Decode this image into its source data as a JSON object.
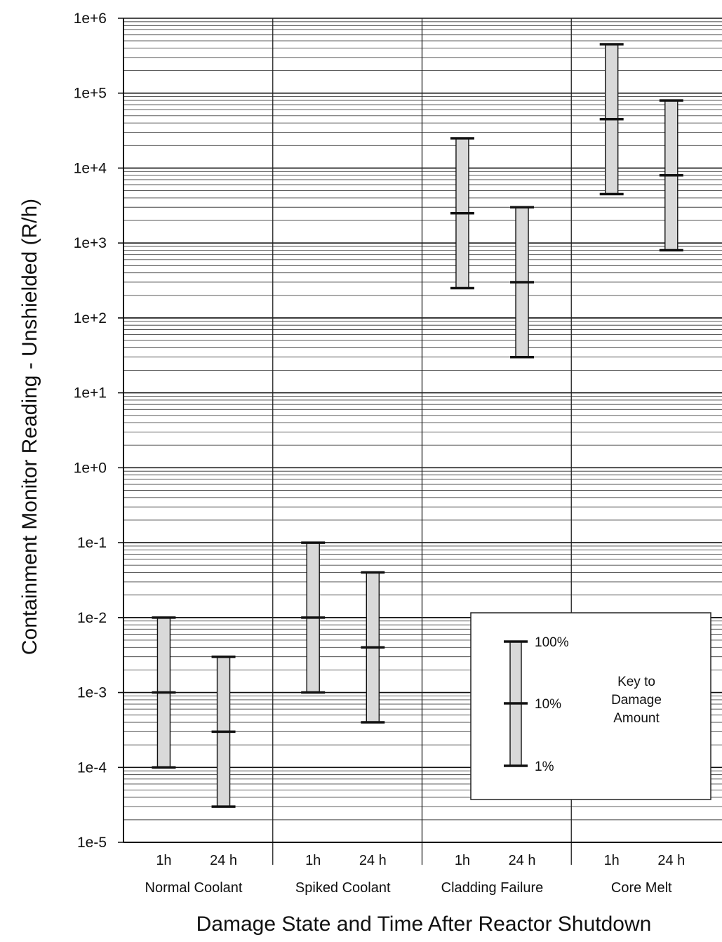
{
  "chart_data": {
    "type": "range-bar",
    "title": "",
    "xlabel": "Damage State and Time After Reactor Shutdown",
    "ylabel": "Containment Monitor Reading - Unshielded (R/h)",
    "yscale": "log",
    "ylim": [
      1e-05,
      1000000
    ],
    "ytick_labels": [
      "1e-5",
      "1e-4",
      "1e-3",
      "1e-2",
      "1e-1",
      "1e+0",
      "1e+1",
      "1e+2",
      "1e+3",
      "1e+4",
      "1e+5",
      "1e+6"
    ],
    "ytick_values": [
      1e-05,
      0.0001,
      0.001,
      0.01,
      0.1,
      1,
      10,
      100,
      1000,
      10000,
      100000,
      1000000
    ],
    "grid": "major and minor horizontal lines",
    "groups": [
      {
        "name": "Normal Coolant",
        "items": [
          {
            "time": "1h",
            "low": 0.0001,
            "mid": 0.001,
            "high": 0.01
          },
          {
            "time": "24 h",
            "low": 3e-05,
            "mid": 0.0003,
            "high": 0.003
          }
        ]
      },
      {
        "name": "Spiked Coolant",
        "items": [
          {
            "time": "1h",
            "low": 0.001,
            "mid": 0.01,
            "high": 0.1
          },
          {
            "time": "24 h",
            "low": 0.0004,
            "mid": 0.004,
            "high": 0.04
          }
        ]
      },
      {
        "name": "Cladding Failure",
        "items": [
          {
            "time": "1h",
            "low": 250,
            "mid": 2500,
            "high": 25000
          },
          {
            "time": "24 h",
            "low": 30,
            "mid": 300,
            "high": 3000
          }
        ]
      },
      {
        "name": "Core Melt",
        "items": [
          {
            "time": "1h",
            "low": 4500,
            "mid": 45000,
            "high": 450000
          },
          {
            "time": "24 h",
            "low": 800,
            "mid": 8000,
            "high": 80000
          }
        ]
      }
    ],
    "legend": {
      "title_lines": [
        "Key to",
        "Damage",
        "Amount"
      ],
      "markers": [
        "100%",
        "10%",
        "1%"
      ],
      "placement": "lower-right"
    },
    "colors": {
      "bar_fill": "#d9d9d9",
      "line": "#111111",
      "background": "#ffffff"
    }
  }
}
